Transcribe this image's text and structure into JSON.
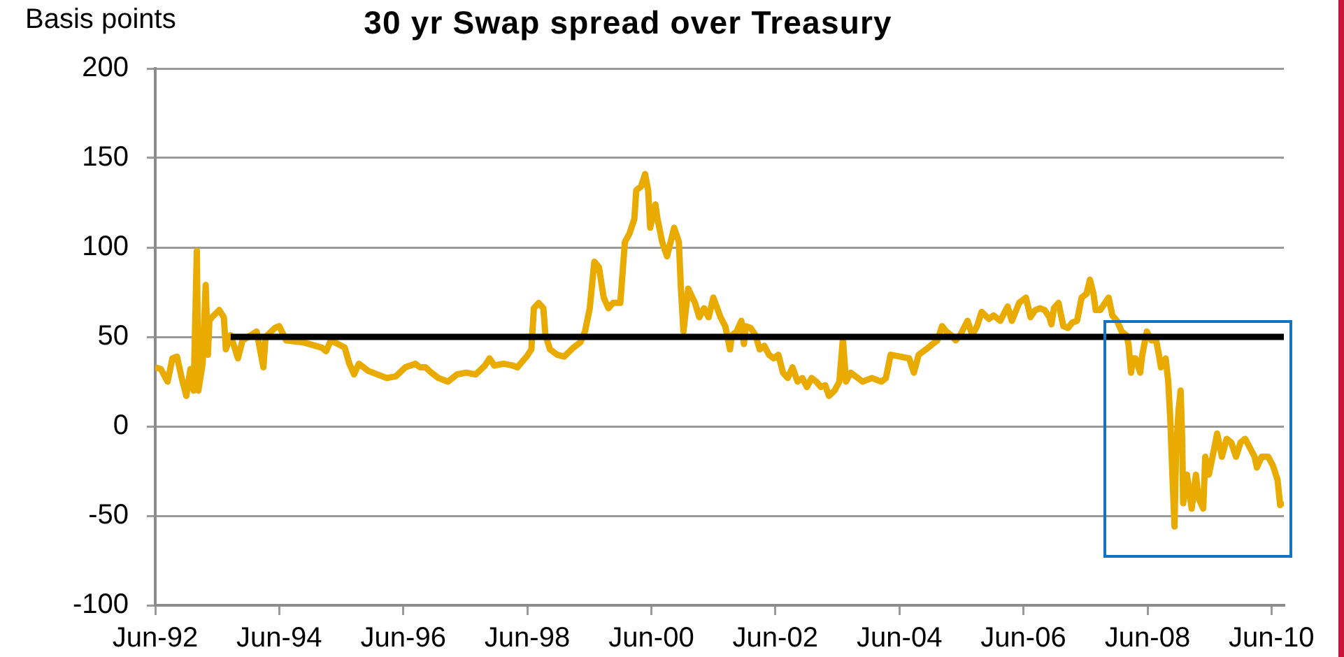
{
  "chart_data": {
    "type": "line",
    "title": "30 yr Swap spread over Treasury",
    "ylabel": "Basis points",
    "series": [
      {
        "color": "#e9ab00",
        "x": [
          "1992-06-01",
          "1992-07-04",
          "1992-08-13",
          "1992-09-10",
          "1992-10-07",
          "1992-11-04",
          "1992-12-01",
          "1992-12-25",
          "1993-01-13",
          "1993-02-01",
          "1993-02-10",
          "1993-03-07",
          "1993-03-25",
          "1993-04-07",
          "1993-04-16",
          "1993-05-01",
          "1993-06-13",
          "1993-07-10",
          "1993-07-22",
          "1993-08-19",
          "1993-10-01",
          "1993-10-28",
          "1994-01-19",
          "1994-02-28",
          "1994-03-13",
          "1994-05-07",
          "1994-06-01",
          "1994-07-13",
          "1994-10-19",
          "1995-02-07",
          "1995-03-04",
          "1995-04-01",
          "1995-06-22",
          "1995-07-19",
          "1995-08-16",
          "1995-09-13",
          "1995-11-07",
          "1996-02-25",
          "1996-04-19",
          "1996-06-13",
          "1996-08-10",
          "1996-09-07",
          "1996-10-10",
          "1996-11-13",
          "1996-12-25",
          "1997-02-19",
          "1997-04-13",
          "1997-06-07",
          "1997-08-01",
          "1997-09-25",
          "1997-10-22",
          "1997-11-19",
          "1998-01-13",
          "1998-03-07",
          "1998-04-04",
          "1998-05-28",
          "1998-06-25",
          "1998-07-10",
          "1998-08-07",
          "1998-09-04",
          "1998-09-16",
          "1998-10-13",
          "1998-11-25",
          "1999-01-04",
          "1999-02-28",
          "1999-04-10",
          "1999-05-07",
          "1999-06-04",
          "1999-07-01",
          "1999-07-28",
          "1999-08-25",
          "1999-09-22",
          "1999-10-19",
          "1999-12-01",
          "1999-12-28",
          "2000-01-25",
          "2000-02-22",
          "2000-03-04",
          "2000-04-01",
          "2000-04-25",
          "2000-05-13",
          "2000-05-25",
          "2000-06-25",
          "2000-07-07",
          "2000-08-04",
          "2000-09-01",
          "2000-10-13",
          "2000-11-10",
          "2000-11-22",
          "2000-12-07",
          "2001-01-04",
          "2001-02-13",
          "2001-03-10",
          "2001-04-07",
          "2001-05-04",
          "2001-06-01",
          "2001-07-13",
          "2001-08-10",
          "2001-09-07",
          "2001-09-19",
          "2001-10-16",
          "2001-11-13",
          "2001-11-28",
          "2001-12-10",
          "2002-01-07",
          "2002-02-04",
          "2002-03-01",
          "2002-03-28",
          "2002-04-25",
          "2002-05-22",
          "2002-06-19",
          "2002-07-16",
          "2002-08-13",
          "2002-09-10",
          "2002-10-10",
          "2002-11-07",
          "2002-12-04",
          "2003-01-01",
          "2003-01-28",
          "2003-02-25",
          "2003-03-22",
          "2003-04-13",
          "2003-05-16",
          "2003-06-13",
          "2003-07-04",
          "2003-07-22",
          "2003-08-19",
          "2003-10-28",
          "2003-12-22",
          "2004-02-16",
          "2004-03-13",
          "2004-04-10",
          "2004-06-04",
          "2004-07-28",
          "2004-08-25",
          "2004-09-22",
          "2004-11-04",
          "2004-12-13",
          "2005-01-10",
          "2005-02-07",
          "2005-03-04",
          "2005-04-01",
          "2005-04-28",
          "2005-05-25",
          "2005-07-07",
          "2005-08-04",
          "2005-09-01",
          "2005-09-28",
          "2005-11-10",
          "2005-12-07",
          "2006-01-16",
          "2006-02-28",
          "2006-03-25",
          "2006-05-07",
          "2006-06-16",
          "2006-07-13",
          "2006-08-10",
          "2006-09-07",
          "2006-10-04",
          "2006-11-01",
          "2006-11-13",
          "2006-11-28",
          "2006-12-25",
          "2007-01-22",
          "2007-02-19",
          "2007-03-16",
          "2007-04-13",
          "2007-05-10",
          "2007-06-07",
          "2007-06-28",
          "2007-07-19",
          "2007-08-01",
          "2007-08-28",
          "2007-09-25",
          "2007-10-16",
          "2007-11-07",
          "2007-12-04",
          "2008-01-01",
          "2008-01-28",
          "2008-02-10",
          "2008-02-25",
          "2008-03-07",
          "2008-03-22",
          "2008-04-19",
          "2008-05-01",
          "2008-05-28",
          "2008-06-25",
          "2008-07-22",
          "2008-08-07",
          "2008-08-19",
          "2008-09-16",
          "2008-10-01",
          "2008-10-13",
          "2008-10-28",
          "2008-11-07",
          "2008-11-16",
          "2008-12-01",
          "2008-12-13",
          "2008-12-22",
          "2008-12-28",
          "2009-01-19",
          "2009-02-16",
          "2009-03-13",
          "2009-03-28",
          "2009-04-25",
          "2009-05-07",
          "2009-05-28",
          "2009-06-19",
          "2009-07-16",
          "2009-08-13",
          "2009-09-10",
          "2009-10-07",
          "2009-11-04",
          "2009-12-01",
          "2009-12-28",
          "2010-01-25",
          "2010-02-22",
          "2010-03-07",
          "2010-04-04",
          "2010-05-13",
          "2010-06-10",
          "2010-07-07",
          "2010-07-22",
          "2010-08-10"
        ],
        "values": [
          33,
          32,
          25,
          38,
          39,
          27,
          17,
          32,
          20,
          98,
          20,
          35,
          79,
          40,
          59,
          61,
          65,
          61,
          43,
          51,
          38,
          48,
          53,
          33,
          50,
          55,
          56,
          48,
          47,
          44,
          42,
          48,
          44,
          35,
          29,
          35,
          31,
          27,
          28,
          33,
          35,
          33,
          33,
          30,
          27,
          25,
          29,
          30,
          29,
          34,
          38,
          34,
          35,
          34,
          33,
          39,
          43,
          66,
          69,
          66,
          51,
          43,
          40,
          39,
          44,
          47,
          53,
          66,
          92,
          89,
          72,
          66,
          69,
          69,
          103,
          108,
          116,
          132,
          134,
          141,
          132,
          111,
          124,
          116,
          103,
          95,
          111,
          103,
          77,
          53,
          77,
          69,
          61,
          66,
          61,
          72,
          61,
          56,
          43,
          51,
          53,
          59,
          46,
          56,
          55,
          51,
          43,
          45,
          40,
          38,
          40,
          30,
          27,
          33,
          25,
          27,
          22,
          27,
          25,
          22,
          23,
          17,
          20,
          25,
          49,
          25,
          30,
          25,
          27,
          25,
          27,
          40,
          39,
          38,
          30,
          40,
          43,
          46,
          48,
          56,
          53,
          51,
          48,
          51,
          59,
          51,
          56,
          64,
          60,
          62,
          59,
          67,
          59,
          69,
          72,
          61,
          65,
          66,
          65,
          61,
          57,
          66,
          69,
          56,
          55,
          58,
          59,
          72,
          74,
          82,
          74,
          65,
          65,
          69,
          72,
          62,
          59,
          53,
          51,
          46,
          30,
          38,
          38,
          30,
          40,
          53,
          48,
          48,
          40,
          33,
          38,
          25,
          4,
          -33,
          -56,
          -14,
          9,
          20,
          -7,
          -43,
          -27,
          -46,
          -27,
          -40,
          -46,
          -17,
          -27,
          -17,
          -4,
          -17,
          -7,
          -9,
          -17,
          -9,
          -7,
          -12,
          -17,
          -23,
          -17,
          -17,
          -22,
          -30,
          -44,
          -42
        ]
      },
      {
        "color": "#000000",
        "x": [
          "1993-08-19",
          "2010-08-13"
        ],
        "values": [
          50,
          50
        ]
      }
    ],
    "xlim": [
      "1992-06-01",
      "2010-08-13"
    ],
    "xticks": [
      {
        "value": "1992-06",
        "label": "Jun-92"
      },
      {
        "value": "1994-06",
        "label": "Jun-94"
      },
      {
        "value": "1996-06",
        "label": "Jun-96"
      },
      {
        "value": "1998-06",
        "label": "Jun-98"
      },
      {
        "value": "2000-06",
        "label": "Jun-00"
      },
      {
        "value": "2002-06",
        "label": "Jun-02"
      },
      {
        "value": "2004-06",
        "label": "Jun-04"
      },
      {
        "value": "2006-06",
        "label": "Jun-06"
      },
      {
        "value": "2008-06",
        "label": "Jun-08"
      },
      {
        "value": "2010-06",
        "label": "Jun-10"
      }
    ],
    "ylim": [
      -100,
      200
    ],
    "yticks": [
      -100,
      -50,
      0,
      50,
      100,
      150,
      200
    ],
    "grid": "y",
    "marker": "none",
    "line_style": "solid"
  }
}
